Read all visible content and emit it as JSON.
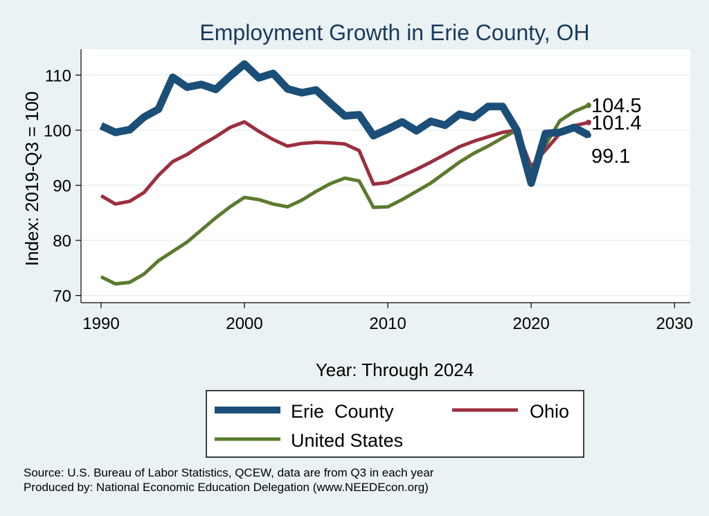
{
  "chart_data": {
    "type": "line",
    "title": "Employment Growth in Erie County, OH",
    "xlabel": "Year: Through 2024",
    "ylabel": "Index: 2019-Q3 = 100",
    "xlim": [
      1990,
      2030
    ],
    "ylim": [
      70,
      112
    ],
    "x_ticks": [
      1990,
      2000,
      2010,
      2020,
      2030
    ],
    "y_ticks": [
      70,
      80,
      90,
      100,
      110
    ],
    "grid": "horizontal",
    "legend_position": "bottom",
    "series": [
      {
        "name": "Erie  County",
        "color": "#1b4f77",
        "x": [
          1990,
          1991,
          1992,
          1993,
          1994,
          1995,
          1996,
          1997,
          1998,
          1999,
          2000,
          2001,
          2002,
          2003,
          2004,
          2005,
          2006,
          2007,
          2008,
          2009,
          2010,
          2011,
          2012,
          2013,
          2014,
          2015,
          2016,
          2017,
          2018,
          2019,
          2020,
          2021,
          2022,
          2023,
          2024
        ],
        "values": [
          100.8,
          99.6,
          100.1,
          102.4,
          103.8,
          109.6,
          107.8,
          108.3,
          107.4,
          109.8,
          112.0,
          109.5,
          110.3,
          107.5,
          106.8,
          107.3,
          104.9,
          102.6,
          102.8,
          99.0,
          100.2,
          101.5,
          99.9,
          101.6,
          100.9,
          102.9,
          102.3,
          104.3,
          104.3,
          100.0,
          90.4,
          99.4,
          99.6,
          100.5,
          99.1
        ]
      },
      {
        "name": "Ohio",
        "color": "#9b2f3f",
        "x": [
          1990,
          1991,
          1992,
          1993,
          1994,
          1995,
          1996,
          1997,
          1998,
          1999,
          2000,
          2001,
          2002,
          2003,
          2004,
          2005,
          2006,
          2007,
          2008,
          2009,
          2010,
          2011,
          2012,
          2013,
          2014,
          2015,
          2016,
          2017,
          2018,
          2019,
          2020,
          2021,
          2022,
          2023,
          2024
        ],
        "values": [
          88.1,
          86.6,
          87.1,
          88.7,
          91.8,
          94.3,
          95.6,
          97.3,
          98.8,
          100.5,
          101.5,
          99.8,
          98.3,
          97.1,
          97.6,
          97.8,
          97.7,
          97.5,
          96.3,
          90.2,
          90.5,
          91.7,
          92.9,
          94.2,
          95.6,
          97.0,
          98.0,
          98.8,
          99.6,
          100.0,
          93.4,
          96.4,
          99.4,
          100.8,
          101.4
        ]
      },
      {
        "name": "United States",
        "color": "#5b7a2e",
        "x": [
          1990,
          1991,
          1992,
          1993,
          1994,
          1995,
          1996,
          1997,
          1998,
          1999,
          2000,
          2001,
          2002,
          2003,
          2004,
          2005,
          2006,
          2007,
          2008,
          2009,
          2010,
          2011,
          2012,
          2013,
          2014,
          2015,
          2016,
          2017,
          2018,
          2019,
          2020,
          2021,
          2022,
          2023,
          2024
        ],
        "values": [
          73.4,
          72.1,
          72.4,
          73.9,
          76.3,
          78.0,
          79.7,
          81.9,
          84.1,
          86.1,
          87.8,
          87.4,
          86.6,
          86.1,
          87.3,
          88.9,
          90.3,
          91.3,
          90.8,
          86.0,
          86.1,
          87.4,
          88.9,
          90.4,
          92.3,
          94.2,
          95.8,
          97.1,
          98.6,
          100.0,
          92.5,
          97.3,
          101.7,
          103.4,
          104.5
        ]
      }
    ],
    "end_labels": [
      {
        "series": "United States",
        "text": "104.5"
      },
      {
        "series": "Ohio",
        "text": "101.4"
      },
      {
        "series": "Erie  County",
        "text": "99.1"
      }
    ],
    "source_lines": [
      "Source: U.S. Bureau of Labor Statistics, QCEW, data are from Q3 in each year",
      "Produced by: National Economic Education Delegation (www.NEEDEcon.org)"
    ]
  }
}
